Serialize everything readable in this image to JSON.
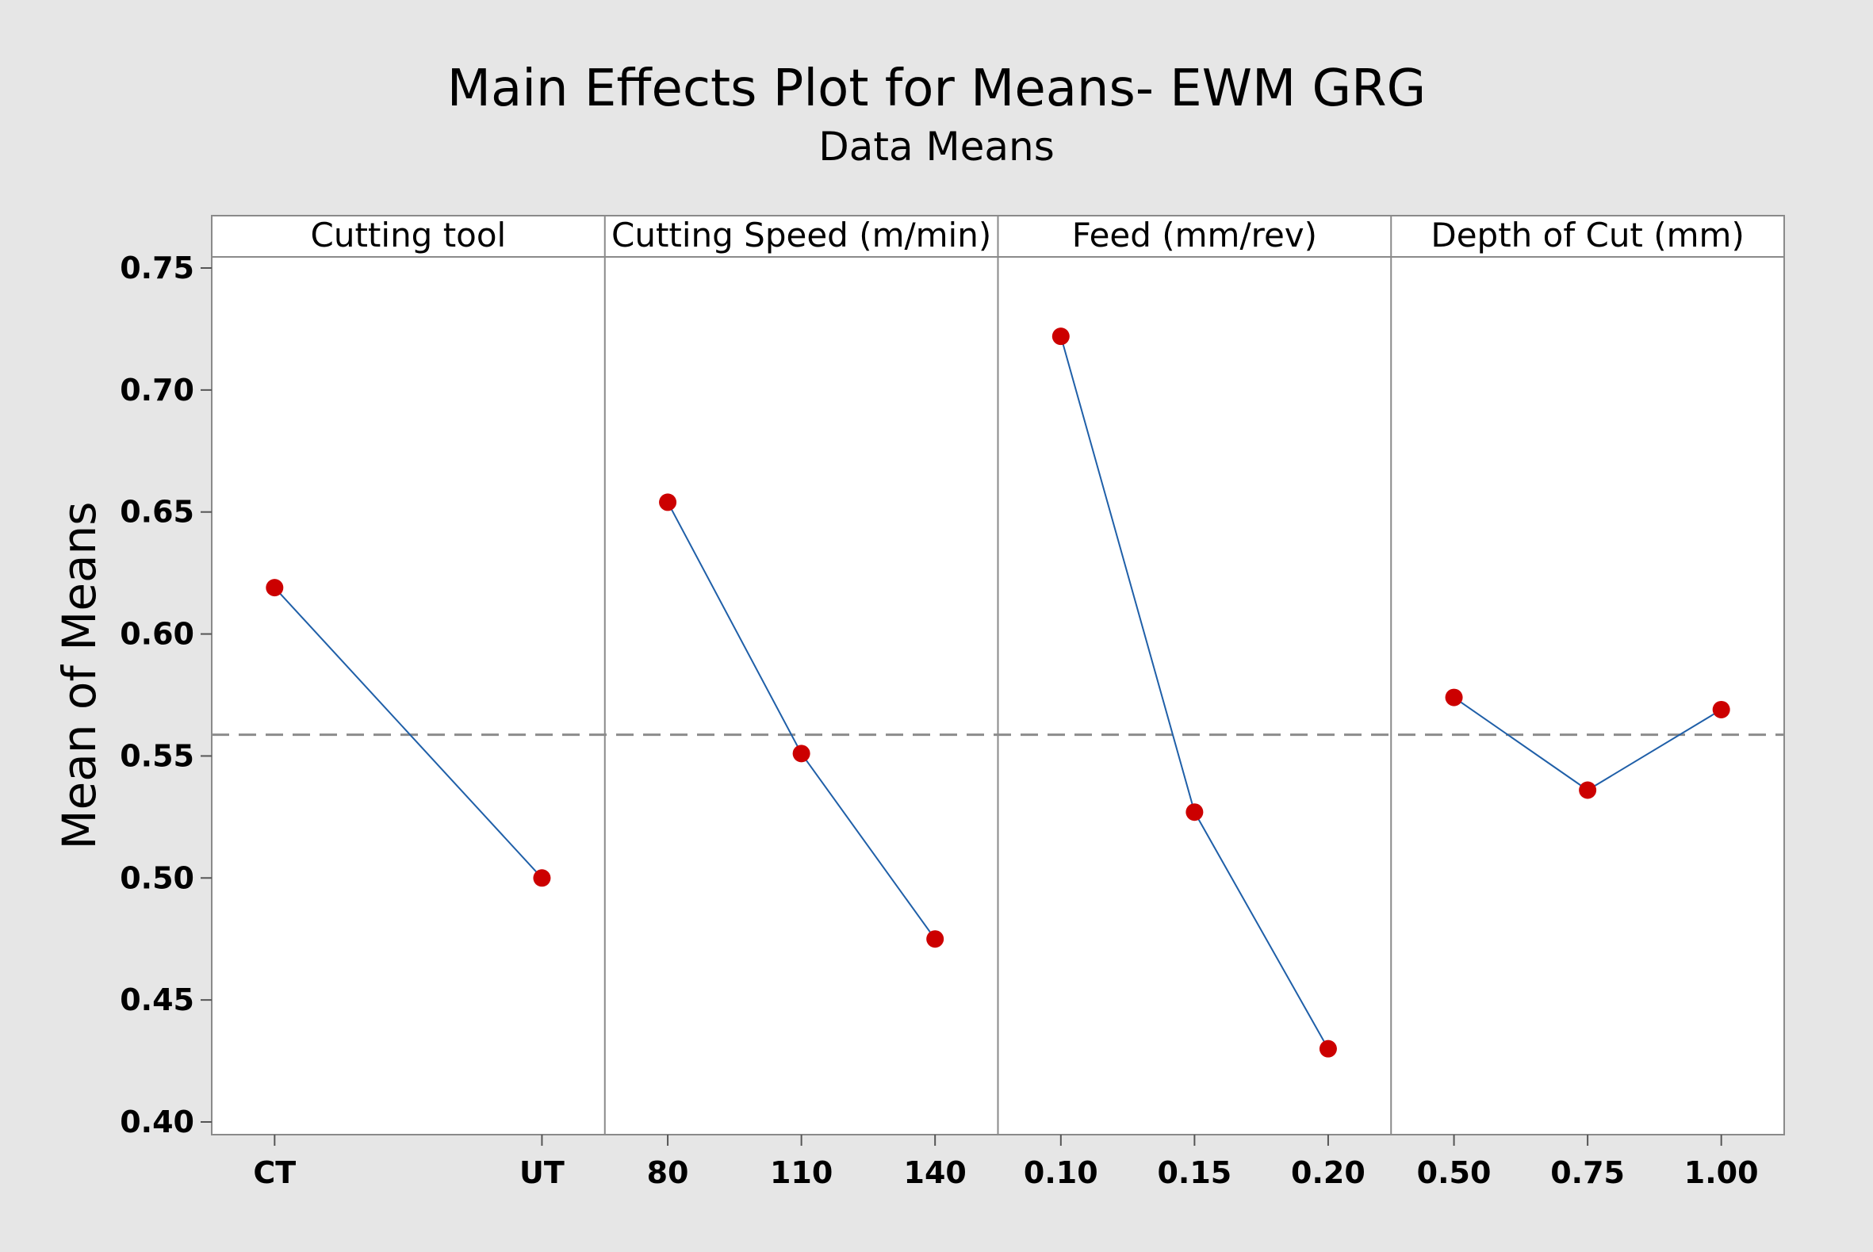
{
  "chart_data": {
    "type": "line",
    "title": "Main Effects Plot for Means- EWM GRG",
    "subtitle": "Data Means",
    "ylabel": "Mean of Means",
    "ylim": [
      0.4,
      0.75
    ],
    "yticks": [
      "0.40",
      "0.45",
      "0.50",
      "0.55",
      "0.60",
      "0.65",
      "0.70",
      "0.75"
    ],
    "reference_line": 0.5587,
    "grid": false,
    "colors": {
      "line": "#1f5fa8",
      "marker": "#cc0000",
      "reference": "#8c8c8c",
      "plot_bg": "#ffffff",
      "page_bg": "#e6e6e6"
    },
    "panels": [
      {
        "label": "Cutting tool",
        "categories": [
          "CT",
          "UT"
        ],
        "values": [
          0.619,
          0.5
        ]
      },
      {
        "label": "Cutting Speed (m/min)",
        "categories": [
          "80",
          "110",
          "140"
        ],
        "values": [
          0.654,
          0.551,
          0.475
        ]
      },
      {
        "label": "Feed (mm/rev)",
        "categories": [
          "0.10",
          "0.15",
          "0.20"
        ],
        "values": [
          0.722,
          0.527,
          0.43
        ]
      },
      {
        "label": "Depth of Cut (mm)",
        "categories": [
          "0.50",
          "0.75",
          "1.00"
        ],
        "values": [
          0.574,
          0.536,
          0.569
        ]
      }
    ]
  }
}
